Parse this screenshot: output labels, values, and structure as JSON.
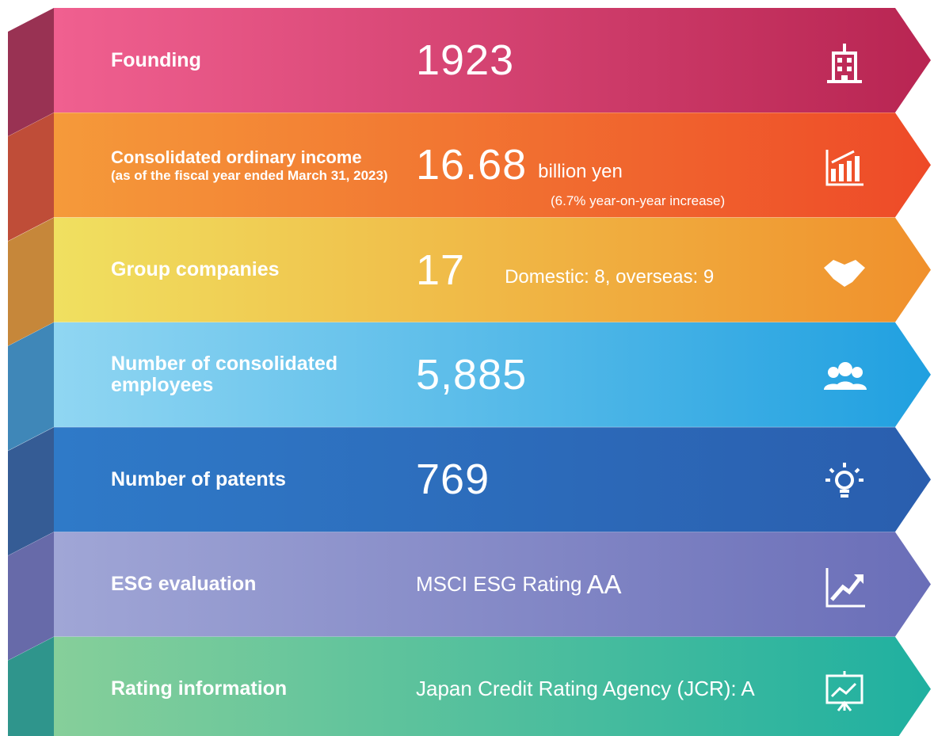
{
  "rows": [
    {
      "label": "Founding",
      "value": "1923"
    },
    {
      "label": "Consolidated ordinary income",
      "sublabel": "(as of the fiscal year ended March 31, 2023)",
      "value": "16.68",
      "unit": "billion yen",
      "note": "(6.7% year-on-year increase)"
    },
    {
      "label": "Group companies",
      "value": "17",
      "note": "Domestic: 8, overseas: 9"
    },
    {
      "label": "Number of consolidated employees",
      "value": "5,885"
    },
    {
      "label": "Number of patents",
      "value": "769"
    },
    {
      "label": "ESG evaluation",
      "text": "MSCI ESG Rating",
      "value": "AA"
    },
    {
      "label": "Rating information",
      "text": "Japan Credit Rating Agency (JCR): A"
    }
  ]
}
